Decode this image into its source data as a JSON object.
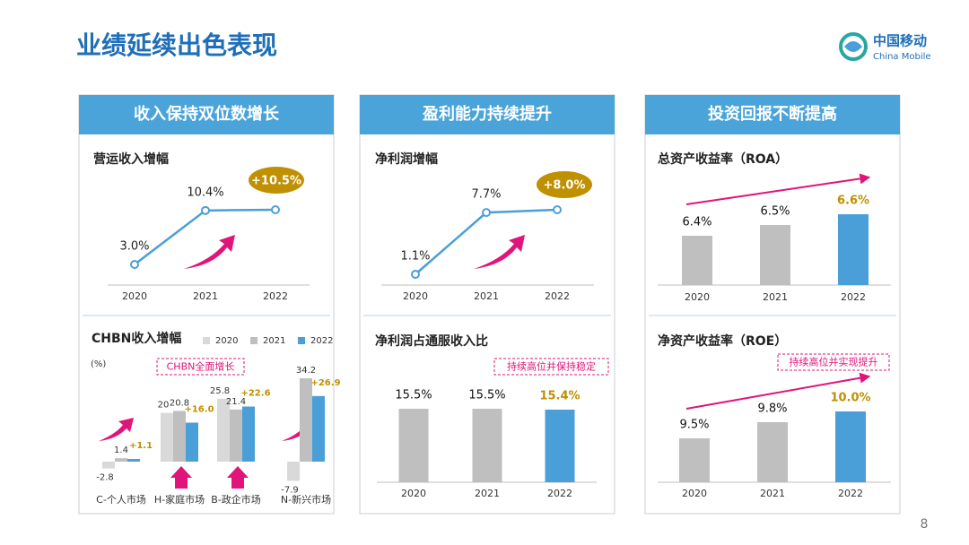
{
  "title": "业绩延续出色表现",
  "logo": {
    "cn": "中国移动",
    "en": "China Mobile"
  },
  "page_number": 8,
  "panels": [
    "收入保持双位数增长",
    "盈利能力持续提升",
    "投资回报不断提高"
  ],
  "chart_data": [
    {
      "type": "line",
      "title": "营运收入增幅",
      "categories": [
        "2020",
        "2021",
        "2022"
      ],
      "values": [
        3.0,
        10.4,
        10.5
      ],
      "value_labels": [
        "3.0%",
        "10.4%",
        "+10.5%"
      ],
      "color": "#4a9fd8",
      "callout_color": "#bf9000"
    },
    {
      "type": "line",
      "title": "净利润增幅",
      "categories": [
        "2020",
        "2021",
        "2022"
      ],
      "values": [
        1.1,
        7.7,
        8.0
      ],
      "value_labels": [
        "1.1%",
        "7.7%",
        "+8.0%"
      ],
      "color": "#4a9fd8",
      "callout_color": "#bf9000"
    },
    {
      "type": "grouped-bar",
      "title": "CHBN收入增幅",
      "subtitle": "(%)",
      "annotation": "CHBN全面增长",
      "categories": [
        "C-个人市场",
        "H-家庭市场",
        "B-政企市场",
        "N-新兴市场"
      ],
      "series": [
        {
          "name": "2020",
          "color": "#d9d9d9",
          "label_color": "#333333",
          "values": [
            -2.8,
            20.0,
            25.8,
            -7.9
          ]
        },
        {
          "name": "2021",
          "color": "#bfbfbf",
          "label_color": "#333333",
          "values": [
            1.4,
            20.8,
            21.4,
            34.2
          ]
        },
        {
          "name": "2022",
          "color": "#4a9fd8",
          "label_color": "#bf9000",
          "values": [
            1.1,
            16.0,
            22.6,
            26.9
          ],
          "value_labels": [
            "+1.1",
            "+16.0",
            "+22.6",
            "+26.9"
          ]
        }
      ]
    },
    {
      "type": "bar",
      "title": "净利润占通服收入比",
      "annotation": "持续高位并保持稳定",
      "categories": [
        "2020",
        "2021",
        "2022"
      ],
      "values": [
        15.5,
        15.5,
        15.4
      ],
      "value_labels": [
        "15.5%",
        "15.5%",
        "15.4%"
      ],
      "colors": [
        "#bfbfbf",
        "#bfbfbf",
        "#4a9fd8"
      ],
      "label_colors": [
        "#111111",
        "#111111",
        "#bf9000"
      ]
    },
    {
      "type": "bar",
      "title": "总资产收益率（ROA）",
      "categories": [
        "2020",
        "2021",
        "2022"
      ],
      "values": [
        6.4,
        6.5,
        6.6
      ],
      "value_labels": [
        "6.4%",
        "6.5%",
        "6.6%"
      ],
      "colors": [
        "#bfbfbf",
        "#bfbfbf",
        "#4a9fd8"
      ],
      "label_colors": [
        "#111111",
        "#111111",
        "#bf9000"
      ]
    },
    {
      "type": "bar",
      "title": "净资产收益率（ROE）",
      "annotation": "持续高位并实现提升",
      "categories": [
        "2020",
        "2021",
        "2022"
      ],
      "values": [
        9.5,
        9.8,
        10.0
      ],
      "value_labels": [
        "9.5%",
        "9.8%",
        "10.0%"
      ],
      "colors": [
        "#bfbfbf",
        "#bfbfbf",
        "#4a9fd8"
      ],
      "label_colors": [
        "#111111",
        "#111111",
        "#bf9000"
      ]
    }
  ]
}
